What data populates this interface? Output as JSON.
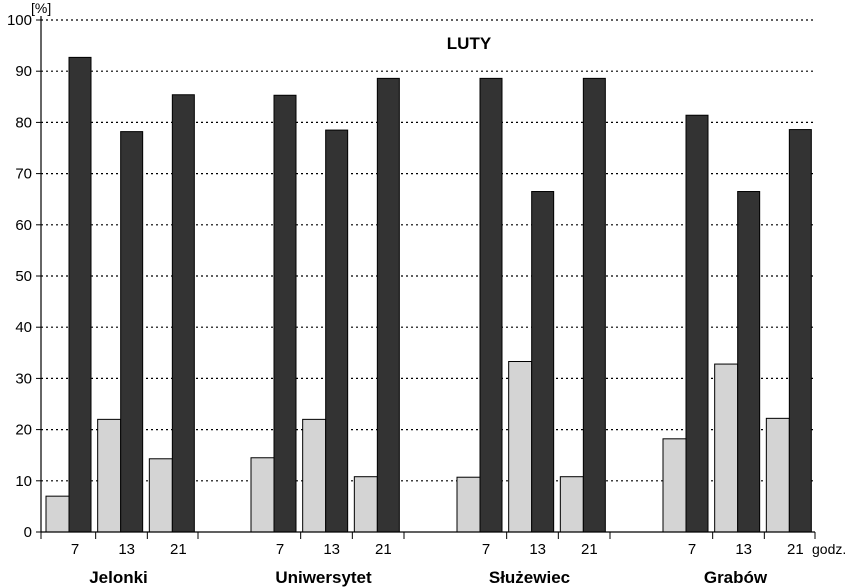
{
  "chart_data": {
    "type": "bar",
    "title": "LUTY",
    "ylabel": "[%]",
    "xlabel": "godz.",
    "ylim": [
      0,
      100
    ],
    "yticks": [
      0,
      10,
      20,
      30,
      40,
      50,
      60,
      70,
      80,
      90,
      100
    ],
    "grid": "horizontal dotted",
    "groups": [
      {
        "name": "Jelonki",
        "hours": [
          "7",
          "13",
          "21"
        ],
        "light": [
          7,
          22,
          14.3
        ],
        "dark": [
          92.7,
          78.2,
          85.4
        ]
      },
      {
        "name": "Uniwersytet",
        "hours": [
          "7",
          "13",
          "21"
        ],
        "light": [
          14.5,
          22,
          10.8
        ],
        "dark": [
          85.3,
          78.5,
          88.6
        ]
      },
      {
        "name": "Służewiec",
        "hours": [
          "7",
          "13",
          "21"
        ],
        "light": [
          10.7,
          33.3,
          10.8
        ],
        "dark": [
          88.6,
          66.5,
          88.6
        ]
      },
      {
        "name": "Grabów",
        "hours": [
          "7",
          "13",
          "21"
        ],
        "light": [
          18.2,
          32.8,
          22.2
        ],
        "dark": [
          81.4,
          66.5,
          78.6
        ]
      }
    ],
    "colors": {
      "light": "#d4d4d4",
      "dark": "#333333",
      "axis": "#000000"
    }
  }
}
